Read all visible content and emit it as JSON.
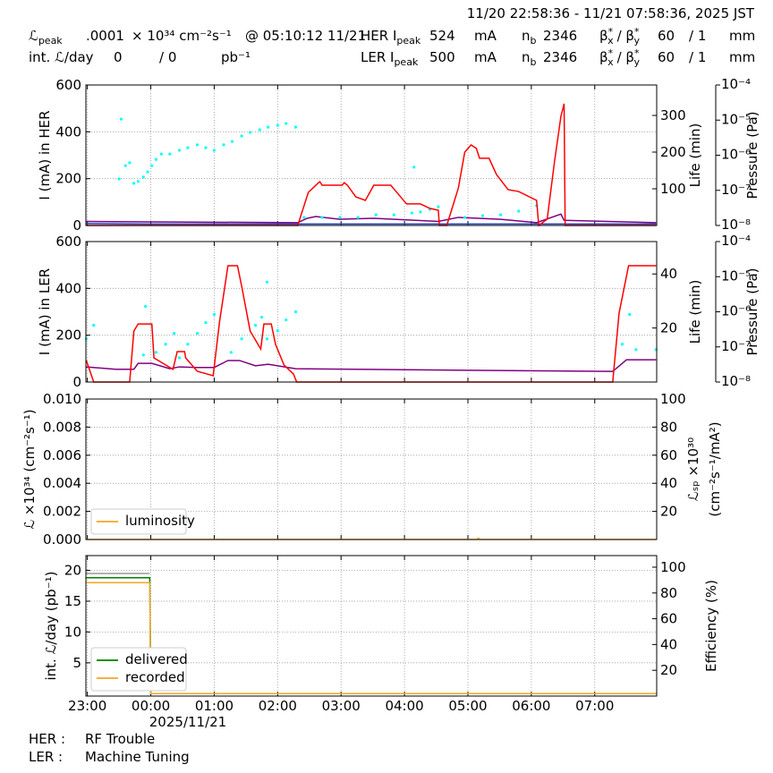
{
  "header": {
    "time_range": "11/20 22:58:36 - 11/21 07:58:36, 2025 JST",
    "lumi_peak": {
      "symbol": "ℒ",
      "sub": "peak",
      "value": ".0001",
      "unit": "× 10³⁴ cm⁻²s⁻¹",
      "at": "@ 05:10:12 11/21"
    },
    "int_lumi": {
      "label": "int. ℒ/day",
      "value": 0,
      "sep": "/ 0",
      "unit": "pb⁻¹"
    },
    "rings": [
      {
        "label": "HER I",
        "label_sub": "peak",
        "current": 524,
        "unit": "mA",
        "nb": "n",
        "nb_sub": "b",
        "bunches": 2346,
        "beta": {
          "b1": "β",
          "s1": "*",
          "x": "x",
          "b2": "/ β",
          "s2": "*",
          "y": "y"
        },
        "beta_x": 60,
        "beta_y": "/ 1",
        "beta_unit": "mm"
      },
      {
        "label": "LER I",
        "label_sub": "peak",
        "current": 500,
        "unit": "mA",
        "nb": "n",
        "nb_sub": "b",
        "bunches": 2346,
        "beta": {
          "b1": "β",
          "s1": "*",
          "x": "x",
          "b2": "/ β",
          "s2": "*",
          "y": "y"
        },
        "beta_x": 60,
        "beta_y": "/ 1",
        "beta_unit": "mm"
      }
    ]
  },
  "footer": {
    "status": [
      {
        "ring": "HER :",
        "text": "RF Trouble"
      },
      {
        "ring": "LER :",
        "text": "Machine Tuning"
      }
    ]
  },
  "chart_data": [
    {
      "type": "line",
      "ylabel": "I (mA) in HER",
      "y2label": [
        "Life (min)"
      ],
      "y3label": "Pressure (Pa)",
      "xlim": [
        "22:58:36",
        "07:58:36"
      ],
      "xticks": [
        "23:00",
        "00:00",
        "01:00",
        "02:00",
        "03:00",
        "04:00",
        "05:00",
        "06:00",
        "07:00"
      ],
      "xticklabels": false,
      "ylim": [
        0,
        600
      ],
      "yticks": [
        0,
        200,
        400,
        600
      ],
      "y2lim": [
        0,
        383
      ],
      "y2ticks": [
        100,
        200,
        300
      ],
      "y3lim": [
        1e-08,
        0.0001
      ],
      "y3scale": "log",
      "y3ticks": [
        {
          "value": 1e-08,
          "label": "10⁻⁸"
        },
        {
          "value": 1e-07,
          "label": "10⁻⁷"
        },
        {
          "value": 1e-06,
          "label": "10⁻⁶"
        },
        {
          "value": 1e-05,
          "label": "10⁻⁵"
        },
        {
          "value": 0.0001,
          "label": "10⁻⁴"
        }
      ],
      "grid": true,
      "series": [
        {
          "color": "#1f3fbf",
          "axis": "y",
          "x": [
            "22:59",
            "00:00",
            "07:58"
          ],
          "values": [
            8,
            6,
            6
          ]
        },
        {
          "color": "#800080",
          "axis": "y3",
          "x": [
            "22:59",
            "02:19",
            "02:28",
            "02:36",
            "02:59",
            "03:31",
            "04:32",
            "04:51",
            "05:31",
            "06:05",
            "06:28",
            "06:31",
            "07:58"
          ],
          "values": [
            1.3e-08,
            1.2e-08,
            1.6e-08,
            1.8e-08,
            1.5e-08,
            1.6e-08,
            1.3e-08,
            1.7e-08,
            1.5e-08,
            1.2e-08,
            2.1e-08,
            1.4e-08,
            1.2e-08
          ]
        },
        {
          "type": "scatter",
          "color": "#00ffff",
          "axis": "y2",
          "x": [
            "23:30",
            "23:32",
            "23:36",
            "23:40",
            "23:44",
            "23:48",
            "23:53",
            "23:57",
            "00:01",
            "00:05",
            "00:10",
            "00:18",
            "00:27",
            "00:35",
            "00:44",
            "00:52",
            "01:00",
            "01:09",
            "01:17",
            "01:26",
            "01:34",
            "01:43",
            "01:51",
            "02:00",
            "02:08",
            "02:17",
            "02:25",
            "02:42",
            "02:59",
            "03:16",
            "03:33",
            "03:50",
            "04:07",
            "04:09",
            "04:15",
            "04:24",
            "04:32",
            "04:57",
            "05:14",
            "05:31",
            "05:48",
            "06:05"
          ],
          "values": [
            127,
            290,
            163,
            171,
            115,
            120,
            132,
            146,
            163,
            180,
            195,
            195,
            205,
            212,
            220,
            212,
            205,
            220,
            229,
            244,
            254,
            261,
            268,
            273,
            278,
            268,
            22,
            22,
            22,
            22,
            29,
            29,
            34,
            159,
            37,
            44,
            51,
            22,
            27,
            29,
            39,
            54
          ]
        },
        {
          "color": "#ff0000",
          "axis": "y",
          "x": [
            "22:59",
            "02:19",
            "02:29",
            "02:38",
            "02:40",
            "02:42",
            "03:01",
            "03:03",
            "03:06",
            "03:14",
            "03:23",
            "03:31",
            "03:47",
            "04:02",
            "04:15",
            "04:24",
            "04:32",
            "04:33",
            "04:40",
            "04:51",
            "04:57",
            "05:03",
            "05:08",
            "05:11",
            "05:20",
            "05:27",
            "05:38",
            "05:48",
            "06:05",
            "06:07",
            "06:15",
            "06:22",
            "06:28",
            "06:31",
            "06:32",
            "07:58"
          ],
          "values": [
            0,
            0,
            141,
            180,
            187,
            172,
            172,
            183,
            172,
            122,
            107,
            172,
            172,
            92,
            92,
            73,
            65,
            0,
            0,
            160,
            313,
            344,
            329,
            287,
            287,
            218,
            153,
            145,
            107,
            0,
            27,
            275,
            466,
            520,
            0,
            0
          ]
        }
      ]
    },
    {
      "type": "line",
      "ylabel": "I (mA) in LER",
      "y2label": [
        "Life (min)"
      ],
      "y3label": "Pressure (Pa)",
      "xlim": [
        "22:58:36",
        "07:58:36"
      ],
      "xticks": [
        "23:00",
        "00:00",
        "01:00",
        "02:00",
        "03:00",
        "04:00",
        "05:00",
        "06:00",
        "07:00"
      ],
      "xticklabels": false,
      "ylim": [
        0,
        600
      ],
      "yticks": [
        0,
        200,
        400,
        600
      ],
      "y2lim": [
        0,
        52
      ],
      "y2ticks": [
        20,
        40
      ],
      "y3lim": [
        1e-08,
        0.0001
      ],
      "y3scale": "log",
      "y3ticks": [
        {
          "value": 1e-08,
          "label": "10⁻⁸"
        },
        {
          "value": 1e-07,
          "label": "10⁻⁷"
        },
        {
          "value": 1e-06,
          "label": "10⁻⁶"
        },
        {
          "value": 1e-05,
          "label": "10⁻⁵"
        },
        {
          "value": 0.0001,
          "label": "10⁻⁴"
        }
      ],
      "grid": true,
      "series": [
        {
          "color": "#800080",
          "axis": "y3",
          "x": [
            "22:59",
            "23:27",
            "23:44",
            "23:48",
            "00:01",
            "00:18",
            "00:27",
            "00:44",
            "01:00",
            "01:13",
            "01:24",
            "01:39",
            "01:51",
            "02:17",
            "03:16",
            "07:17",
            "07:30",
            "07:58"
          ],
          "values": [
            2.7e-08,
            2.3e-08,
            2.3e-08,
            3.4e-08,
            3.4e-08,
            2.4e-08,
            2.7e-08,
            2.6e-08,
            2.6e-08,
            4.1e-08,
            4.1e-08,
            2.9e-08,
            3.2e-08,
            2.4e-08,
            2.3e-08,
            2e-08,
            4.3e-08,
            4.3e-08
          ]
        },
        {
          "type": "scatter",
          "color": "#00ffff",
          "axis": "y2",
          "x": [
            "22:59",
            "23:06",
            "23:53",
            "23:55",
            "00:05",
            "00:14",
            "00:22",
            "00:27",
            "00:35",
            "00:44",
            "00:52",
            "01:00",
            "01:16",
            "01:26",
            "01:39",
            "01:45",
            "01:50",
            "01:50",
            "02:00",
            "02:08",
            "02:17",
            "07:26",
            "07:33",
            "07:39",
            "07:58"
          ],
          "values": [
            16,
            21,
            10,
            28,
            11,
            14,
            18,
            9,
            14,
            18,
            22,
            25,
            11,
            16,
            21,
            24,
            16,
            37,
            19,
            23,
            26,
            14,
            25,
            12,
            12
          ]
        },
        {
          "color": "#ff0000",
          "axis": "y",
          "x": [
            "22:59",
            "23:06",
            "23:40",
            "23:44",
            "23:48",
            "00:01",
            "00:03",
            "00:10",
            "00:21",
            "00:25",
            "00:32",
            "00:33",
            "00:44",
            "00:59",
            "01:05",
            "01:13",
            "01:22",
            "01:26",
            "01:34",
            "01:44",
            "01:47",
            "01:54",
            "01:58",
            "02:06",
            "02:15",
            "02:18",
            "07:17",
            "07:23",
            "07:32",
            "07:58"
          ],
          "values": [
            92,
            0,
            0,
            218,
            248,
            248,
            103,
            84,
            54,
            130,
            130,
            103,
            46,
            27,
            256,
            497,
            497,
            409,
            218,
            141,
            248,
            248,
            161,
            73,
            34,
            0,
            0,
            294,
            497,
            497
          ]
        }
      ]
    },
    {
      "type": "line",
      "ylabel": "ℒ ×10³⁴ (cm⁻²s⁻¹)",
      "y2label": [
        "ℒₛₚ ×10³⁰",
        "(cm⁻²s⁻¹/mA²)"
      ],
      "xlim": [
        "22:58:36",
        "07:58:36"
      ],
      "xticks": [
        "23:00",
        "00:00",
        "01:00",
        "02:00",
        "03:00",
        "04:00",
        "05:00",
        "06:00",
        "07:00"
      ],
      "xticklabels": false,
      "ylim": [
        0,
        0.01
      ],
      "yticks": [
        {
          "value": 0,
          "label": "0.000"
        },
        {
          "value": 0.002,
          "label": "0.002"
        },
        {
          "value": 0.004,
          "label": "0.004"
        },
        {
          "value": 0.006,
          "label": "0.006"
        },
        {
          "value": 0.008,
          "label": "0.008"
        },
        {
          "value": 0.01,
          "label": "0.010"
        }
      ],
      "y2lim": [
        0,
        100
      ],
      "y2ticks": [
        20,
        40,
        60,
        80,
        100
      ],
      "grid": true,
      "legend": "lower left",
      "series": [
        {
          "name": "luminosity",
          "color": "#f5a623",
          "axis": "y",
          "x": [
            "22:59",
            "05:09",
            "05:10",
            "05:11",
            "07:58"
          ],
          "values": [
            0,
            0,
            0.0001,
            0,
            0
          ]
        }
      ]
    },
    {
      "type": "line",
      "ylabel": "int. ℒ/day (pb⁻¹)",
      "y2label": [
        "Efficiency (%)"
      ],
      "xlim": [
        "22:58:36",
        "07:58:36"
      ],
      "xticks": [
        "23:00",
        "00:00",
        "01:00",
        "02:00",
        "03:00",
        "04:00",
        "05:00",
        "06:00",
        "07:00"
      ],
      "xticklabels": true,
      "xlabel": "2025/11/21",
      "ylim": [
        -0.4,
        22.4
      ],
      "yticks": [
        5,
        10,
        15,
        20
      ],
      "y2lim": [
        0,
        109
      ],
      "y2ticks": [
        20,
        40,
        60,
        80,
        100
      ],
      "grid": true,
      "legend": "lower left",
      "series": [
        {
          "color": "#999999",
          "axis": "y",
          "x": [
            "22:59",
            "23:59"
          ],
          "values": [
            19.5,
            19.5
          ]
        },
        {
          "name": "delivered",
          "color": "#008000",
          "axis": "y",
          "x": [
            "22:59",
            "23:59",
            "00:00",
            "07:58"
          ],
          "values": [
            18.8,
            18.8,
            0,
            0
          ]
        },
        {
          "name": "recorded",
          "color": "#f5a623",
          "axis": "y",
          "x": [
            "22:59",
            "23:59",
            "00:00",
            "07:58"
          ],
          "values": [
            18.0,
            18.0,
            0,
            0
          ]
        }
      ]
    }
  ]
}
